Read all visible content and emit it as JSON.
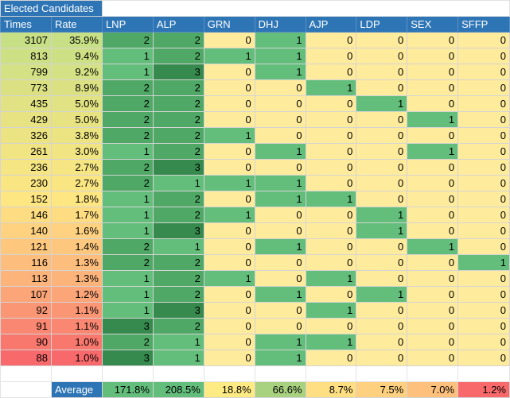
{
  "sheet": {
    "title": "Elected Candidates",
    "headers": [
      "Times",
      "Rate",
      "LNP",
      "ALP",
      "GRN",
      "DHJ",
      "AJP",
      "LDP",
      "SEX",
      "SFFP"
    ],
    "rows": [
      [
        "3107",
        "35.9%",
        "2",
        "2",
        "0",
        "1",
        "0",
        "0",
        "0",
        "0"
      ],
      [
        "813",
        "9.4%",
        "1",
        "2",
        "1",
        "1",
        "0",
        "0",
        "0",
        "0"
      ],
      [
        "799",
        "9.2%",
        "1",
        "3",
        "0",
        "1",
        "0",
        "0",
        "0",
        "0"
      ],
      [
        "773",
        "8.9%",
        "2",
        "2",
        "0",
        "0",
        "1",
        "0",
        "0",
        "0"
      ],
      [
        "435",
        "5.0%",
        "2",
        "2",
        "0",
        "0",
        "0",
        "1",
        "0",
        "0"
      ],
      [
        "429",
        "5.0%",
        "2",
        "2",
        "0",
        "0",
        "0",
        "0",
        "1",
        "0"
      ],
      [
        "326",
        "3.8%",
        "2",
        "2",
        "1",
        "0",
        "0",
        "0",
        "0",
        "0"
      ],
      [
        "261",
        "3.0%",
        "1",
        "2",
        "0",
        "1",
        "0",
        "0",
        "1",
        "0"
      ],
      [
        "236",
        "2.7%",
        "2",
        "3",
        "0",
        "0",
        "0",
        "0",
        "0",
        "0"
      ],
      [
        "230",
        "2.7%",
        "2",
        "1",
        "1",
        "1",
        "0",
        "0",
        "0",
        "0"
      ],
      [
        "152",
        "1.8%",
        "1",
        "2",
        "0",
        "1",
        "1",
        "0",
        "0",
        "0"
      ],
      [
        "146",
        "1.7%",
        "1",
        "2",
        "1",
        "0",
        "0",
        "1",
        "0",
        "0"
      ],
      [
        "140",
        "1.6%",
        "1",
        "3",
        "0",
        "0",
        "0",
        "1",
        "0",
        "0"
      ],
      [
        "121",
        "1.4%",
        "2",
        "1",
        "0",
        "1",
        "0",
        "0",
        "1",
        "0"
      ],
      [
        "116",
        "1.3%",
        "2",
        "2",
        "0",
        "0",
        "0",
        "0",
        "0",
        "1"
      ],
      [
        "113",
        "1.3%",
        "1",
        "2",
        "1",
        "0",
        "1",
        "0",
        "0",
        "0"
      ],
      [
        "107",
        "1.2%",
        "1",
        "2",
        "0",
        "1",
        "0",
        "1",
        "0",
        "0"
      ],
      [
        "92",
        "1.1%",
        "1",
        "3",
        "0",
        "0",
        "1",
        "0",
        "0",
        "0"
      ],
      [
        "91",
        "1.1%",
        "3",
        "2",
        "0",
        "0",
        "0",
        "0",
        "0",
        "0"
      ],
      [
        "90",
        "1.0%",
        "2",
        "1",
        "0",
        "1",
        "1",
        "0",
        "0",
        "0"
      ],
      [
        "88",
        "1.0%",
        "3",
        "1",
        "0",
        "1",
        "0",
        "0",
        "0",
        "0"
      ]
    ],
    "average_label": "Average",
    "averages": [
      "171.8%",
      "208.5%",
      "18.8%",
      "66.6%",
      "8.7%",
      "7.5%",
      "7.0%",
      "1.2%"
    ],
    "colors": {
      "header_blue": "#2e75b6",
      "value_0": "#ffeb9c",
      "value_1": "#63be7b",
      "value_2": "#4fa866",
      "value_3": "#368a4e",
      "times_top": "#d6e283",
      "times_bottom": "#f8696b",
      "avg_high": "#63be7b",
      "avg_low": "#f8696b"
    }
  }
}
